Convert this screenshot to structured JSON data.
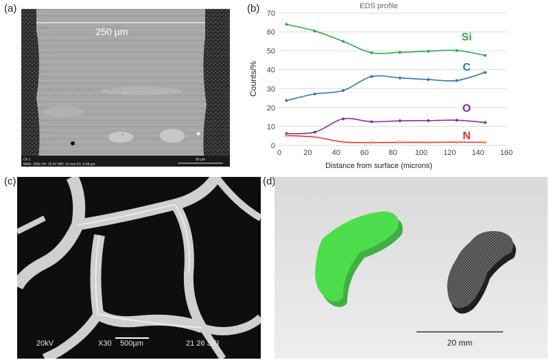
{
  "panels": {
    "a": {
      "label": "(a)",
      "scale_label": "250 µm",
      "footer_line1": "Ch 1",
      "footer_line2": "MAG: 300x   HV: 20 kV   WD: 10 mm   Px: 0.48 µm",
      "scalebar_label": "50 µm"
    },
    "b": {
      "label": "(b)"
    },
    "c": {
      "label": "(c)",
      "footer": {
        "kv": "20kV",
        "mag": "X30",
        "scale": "500µm",
        "id": "21 26 SEI"
      }
    },
    "d": {
      "label": "(d)",
      "scale_label": "20 mm"
    }
  },
  "chart_data": {
    "type": "line",
    "title": "EDS profile",
    "xlabel": "Distance from surface (microns)",
    "ylabel": "Counts/%",
    "xlim": [
      0,
      160
    ],
    "ylim": [
      0,
      70
    ],
    "xticks": [
      0,
      20,
      40,
      60,
      80,
      100,
      120,
      140,
      160
    ],
    "yticks": [
      0,
      10,
      20,
      30,
      40,
      50,
      60,
      70
    ],
    "grid": "horizontal",
    "x": [
      5,
      25,
      45,
      65,
      85,
      105,
      125,
      145
    ],
    "series": [
      {
        "name": "Si",
        "color": "#2eab4a",
        "values": [
          64,
          60.5,
          55,
          49,
          49.2,
          49.8,
          50.2,
          47.6
        ]
      },
      {
        "name": "C",
        "color": "#2f74b5",
        "values": [
          23.7,
          27.2,
          29,
          36.4,
          35.7,
          34.8,
          34.3,
          38.6
        ]
      },
      {
        "name": "O",
        "color": "#7a2fa5",
        "values": [
          6.2,
          7,
          14,
          12.5,
          13,
          13.1,
          13.3,
          12.1
        ]
      },
      {
        "name": "N",
        "color": "#e8312a",
        "values": [
          5.2,
          4.4,
          1.8,
          1.5,
          1.6,
          1.6,
          1.7,
          1.6
        ]
      }
    ],
    "marker_color": "#e7a33a"
  }
}
